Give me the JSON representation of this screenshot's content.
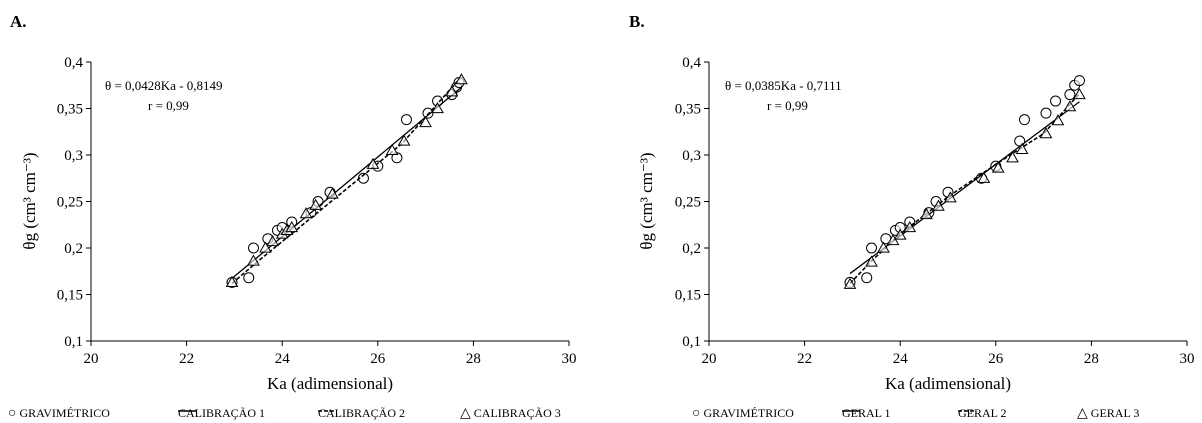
{
  "charts": [
    {
      "id": "A",
      "panel_label": "A.",
      "ylabel": "θg (cm³ cm⁻³)",
      "xlabel": "Ka (adimensional)",
      "equation": "θ = 0,0428Ka - 0,8149",
      "r_text": "r = 0,99",
      "legend": [
        {
          "symbol": "circle",
          "label": "GRAVIMÉTRICO"
        },
        {
          "symbol": "solid-line",
          "label": "CALIBRAÇÃO 1"
        },
        {
          "symbol": "dashed-line",
          "label": "CALIBRAÇÃO 2"
        },
        {
          "symbol": "triangle",
          "label": "CALIBRAÇÃO 3"
        }
      ]
    },
    {
      "id": "B",
      "panel_label": "B.",
      "ylabel": "θg (cm³ cm⁻³)",
      "xlabel": "Ka (adimensional)",
      "equation": "θ = 0,0385Ka - 0,7111",
      "r_text": "r = 0,99",
      "legend": [
        {
          "symbol": "circle",
          "label": "GRAVIMÉTRICO"
        },
        {
          "symbol": "solid-line",
          "label": "GERAL 1"
        },
        {
          "symbol": "dashed-line",
          "label": "GERAL 2"
        },
        {
          "symbol": "triangle",
          "label": "GERAL 3"
        }
      ]
    }
  ],
  "chart_data": [
    {
      "type": "scatter",
      "xlabel": "Ka (adimensional)",
      "ylabel": "θg (cm³ cm⁻³)",
      "xlim": [
        20,
        30
      ],
      "ylim": [
        0.1,
        0.4
      ],
      "x_ticks": [
        "20",
        "22",
        "24",
        "26",
        "28",
        "30"
      ],
      "y_ticks": [
        "0,1",
        "0,15",
        "0,2",
        "0,25",
        "0,3",
        "0,35",
        "0,4"
      ],
      "grid": false,
      "legend_position": "bottom",
      "series": [
        {
          "name": "GRAVIMÉTRICO",
          "kind": "points",
          "marker": "circle",
          "x": [
            22.95,
            23.3,
            23.4,
            23.7,
            23.9,
            24.0,
            24.2,
            24.6,
            24.75,
            25.0,
            25.7,
            26.0,
            26.4,
            26.6,
            27.05,
            27.25,
            27.55,
            27.65,
            27.7
          ],
          "y": [
            0.163,
            0.168,
            0.2,
            0.21,
            0.219,
            0.222,
            0.228,
            0.238,
            0.25,
            0.26,
            0.275,
            0.288,
            0.297,
            0.338,
            0.345,
            0.358,
            0.365,
            0.373,
            0.378
          ]
        },
        {
          "name": "CALIBRAÇÃO 1",
          "kind": "line",
          "style": "solid",
          "x": [
            22.95,
            27.75
          ],
          "y": [
            0.1673,
            0.3728
          ]
        },
        {
          "name": "CALIBRAÇÃO 2",
          "kind": "line",
          "style": "dashed",
          "x": [
            22.95,
            23.5,
            24.5,
            25.5,
            26.5,
            27.75
          ],
          "y": [
            0.162,
            0.186,
            0.228,
            0.27,
            0.312,
            0.384
          ]
        },
        {
          "name": "CALIBRAÇÃO 3",
          "kind": "points",
          "marker": "triangle",
          "x": [
            22.95,
            23.4,
            23.65,
            23.8,
            24.0,
            24.1,
            24.2,
            24.5,
            24.7,
            25.05,
            25.9,
            26.3,
            26.55,
            27.0,
            27.25,
            27.55,
            27.75
          ],
          "y": [
            0.163,
            0.186,
            0.2,
            0.207,
            0.215,
            0.219,
            0.222,
            0.237,
            0.246,
            0.258,
            0.29,
            0.305,
            0.315,
            0.335,
            0.35,
            0.368,
            0.381
          ]
        }
      ]
    },
    {
      "type": "scatter",
      "xlabel": "Ka (adimensional)",
      "ylabel": "θg (cm³ cm⁻³)",
      "xlim": [
        20,
        30
      ],
      "ylim": [
        0.1,
        0.4
      ],
      "x_ticks": [
        "20",
        "22",
        "24",
        "26",
        "28",
        "30"
      ],
      "y_ticks": [
        "0,1",
        "0,15",
        "0,2",
        "0,25",
        "0,3",
        "0,35",
        "0,4"
      ],
      "grid": false,
      "legend_position": "bottom",
      "series": [
        {
          "name": "GRAVIMÉTRICO",
          "kind": "points",
          "marker": "circle",
          "x": [
            22.95,
            23.3,
            23.4,
            23.7,
            23.9,
            24.0,
            24.2,
            24.6,
            24.75,
            25.0,
            25.7,
            26.0,
            26.5,
            26.6,
            27.05,
            27.25,
            27.55,
            27.65,
            27.75
          ],
          "y": [
            0.163,
            0.168,
            0.2,
            0.21,
            0.219,
            0.222,
            0.228,
            0.238,
            0.25,
            0.26,
            0.275,
            0.288,
            0.315,
            0.338,
            0.345,
            0.358,
            0.365,
            0.375,
            0.38
          ]
        },
        {
          "name": "GERAL 1",
          "kind": "line",
          "style": "solid",
          "x": [
            22.95,
            27.75
          ],
          "y": [
            0.1725,
            0.3573
          ]
        },
        {
          "name": "GERAL 2",
          "kind": "line",
          "style": "dashed",
          "x": [
            22.95,
            23.4,
            24.0,
            25.0,
            26.0,
            27.0,
            27.75
          ],
          "y": [
            0.162,
            0.186,
            0.215,
            0.255,
            0.29,
            0.323,
            0.366
          ]
        },
        {
          "name": "GERAL 3",
          "kind": "points",
          "marker": "triangle",
          "x": [
            22.95,
            23.4,
            23.65,
            23.85,
            24.0,
            24.2,
            24.55,
            24.8,
            25.05,
            25.75,
            26.05,
            26.35,
            26.55,
            27.05,
            27.3,
            27.55,
            27.75
          ],
          "y": [
            0.161,
            0.185,
            0.2,
            0.208,
            0.214,
            0.222,
            0.236,
            0.245,
            0.254,
            0.275,
            0.286,
            0.297,
            0.306,
            0.323,
            0.337,
            0.352,
            0.365
          ]
        }
      ]
    }
  ]
}
